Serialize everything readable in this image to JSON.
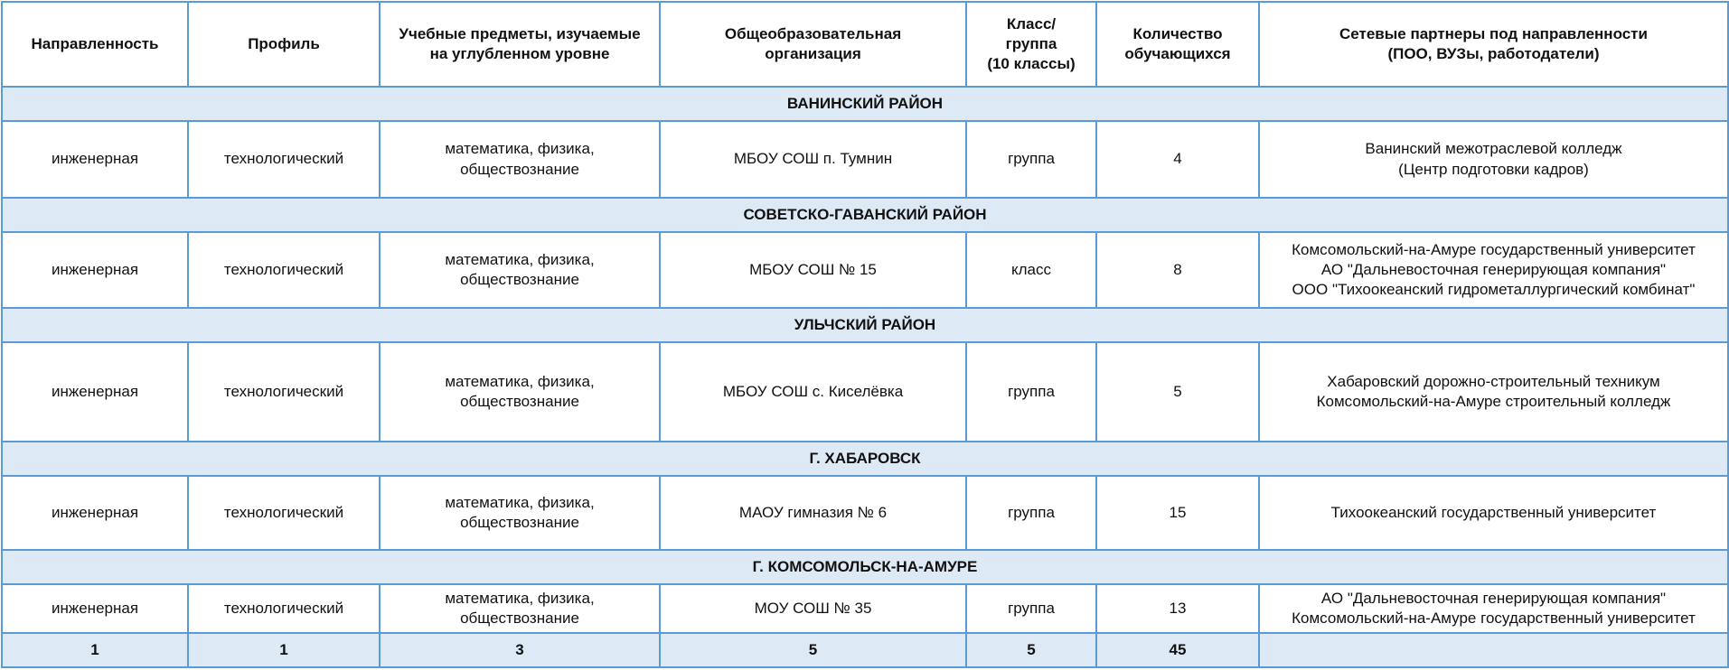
{
  "table": {
    "header": [
      [
        "Направленность"
      ],
      [
        "Профиль"
      ],
      [
        "Учебные предметы, изучаемые",
        "на углубленном уровне"
      ],
      [
        "Общеобразовательная",
        "организация"
      ],
      [
        "Класс/",
        "группа",
        "(10 классы)"
      ],
      [
        "Количество",
        "обучающихся"
      ],
      [
        "Сетевые партнеры под направленности",
        "(ПОО, ВУЗы, работодатели)"
      ]
    ],
    "sections": [
      {
        "title": "ВАНИНСКИЙ РАЙОН",
        "rows": [
          [
            [
              "инженерная"
            ],
            [
              "технологический"
            ],
            [
              "математика,  физика,",
              "обществознание"
            ],
            [
              "МБОУ СОШ п. Тумнин"
            ],
            [
              "группа"
            ],
            [
              4
            ],
            [
              "Ванинский межотраслевой колледж",
              "(Центр подготовки кадров)"
            ]
          ]
        ]
      },
      {
        "title": "СОВЕТСКО-ГАВАНСКИЙ РАЙОН",
        "rows": [
          [
            [
              "инженерная"
            ],
            [
              "технологический"
            ],
            [
              "математика,  физика,",
              "обществознание"
            ],
            [
              "МБОУ СОШ № 15"
            ],
            [
              "класс"
            ],
            [
              8
            ],
            [
              "Комсомольский-на-Амуре государственный университет",
              "АО \"Дальневосточная генерирующая компания\"",
              "ООО \"Тихоокеанский гидрометаллургический комбинат\""
            ]
          ]
        ]
      },
      {
        "title": "УЛЬЧСКИЙ РАЙОН",
        "rows": [
          [
            [
              "инженерная"
            ],
            [
              "технологический"
            ],
            [
              "математика,  физика,",
              "обществознание"
            ],
            [
              "МБОУ СОШ с. Киселёвка"
            ],
            [
              "группа"
            ],
            [
              5
            ],
            [
              "Хабаровский дорожно-строительный техникум",
              "Комсомольский-на-Амуре строительный колледж"
            ]
          ]
        ]
      },
      {
        "title": "Г. ХАБАРОВСК",
        "rows": [
          [
            [
              "инженерная"
            ],
            [
              "технологический"
            ],
            [
              "математика,  физика,",
              "обществознание"
            ],
            [
              "МАОУ гимназия № 6"
            ],
            [
              "группа"
            ],
            [
              15
            ],
            [
              "Тихоокеанский государственный университет"
            ]
          ]
        ]
      },
      {
        "title": "Г. КОМСОМОЛЬСК-НА-АМУРЕ",
        "rows": [
          [
            [
              "инженерная"
            ],
            [
              "технологический"
            ],
            [
              "математика,  физика,",
              "обществознание"
            ],
            [
              "МОУ СОШ № 35"
            ],
            [
              "группа"
            ],
            [
              13
            ],
            [
              "АО \"Дальневосточная генерирующая компания\"",
              "Комсомольский-на-Амуре государственный университет"
            ]
          ]
        ]
      }
    ],
    "totals": [
      1,
      1,
      3,
      5,
      5,
      45
    ]
  }
}
